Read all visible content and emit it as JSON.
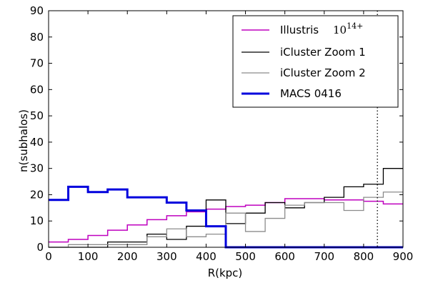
{
  "chart_data": {
    "type": "line",
    "xlabel": "R(kpc)",
    "ylabel": "n(subhalos)",
    "xlim": [
      0,
      900
    ],
    "ylim": [
      0,
      90
    ],
    "xticks": [
      0,
      100,
      200,
      300,
      400,
      500,
      600,
      700,
      800,
      900
    ],
    "yticks": [
      0,
      10,
      20,
      30,
      40,
      50,
      60,
      70,
      80,
      90
    ],
    "grid": false,
    "legend_position": "top-right",
    "bin_edges": [
      0,
      50,
      100,
      150,
      200,
      250,
      300,
      350,
      400,
      450,
      500,
      550,
      600,
      650,
      700,
      750,
      800,
      850,
      900
    ],
    "vline": {
      "x": 835,
      "style": "dotted"
    },
    "series": [
      {
        "name": "Illustris 10^{14+}",
        "legend_main": "Illustris",
        "legend_sup": "14+",
        "color": "#bf00bf",
        "width": 1.5,
        "values": [
          2,
          3,
          4.5,
          6.5,
          8.5,
          10.5,
          12,
          13.5,
          14.5,
          15.5,
          16,
          17,
          18.5,
          18.5,
          18,
          18,
          17.5,
          16.5
        ]
      },
      {
        "name": "iCluster Zoom 1",
        "color": "#000000",
        "width": 1.3,
        "values": [
          0,
          0,
          0,
          2,
          2,
          5,
          3,
          8,
          18,
          9,
          13,
          17,
          15,
          17,
          19,
          23,
          24,
          30
        ]
      },
      {
        "name": "iCluster Zoom 2",
        "color": "#8c8c8c",
        "width": 1.3,
        "values": [
          0,
          1,
          1,
          1,
          1,
          4,
          7,
          4,
          5,
          13,
          6,
          11,
          16,
          17,
          17,
          14,
          19,
          21
        ]
      },
      {
        "name": "MACS 0416",
        "color": "#0000dd",
        "width": 3,
        "values": [
          18,
          23,
          21,
          22,
          19,
          19,
          17,
          14,
          8,
          0,
          0,
          0,
          0,
          0,
          0,
          0,
          0,
          0
        ]
      }
    ]
  }
}
